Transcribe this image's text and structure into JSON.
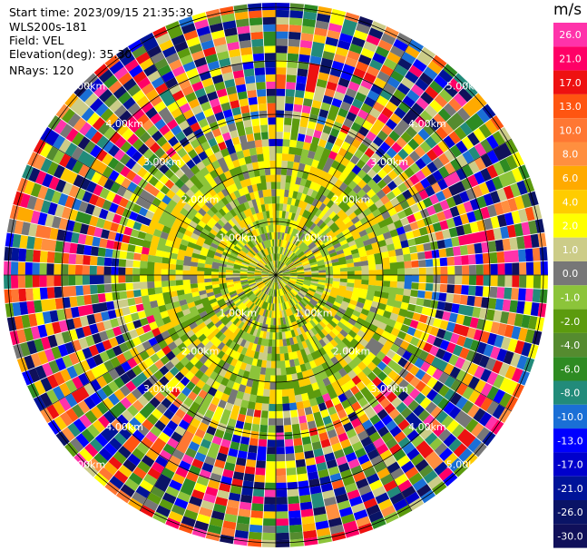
{
  "info": {
    "start_time": "Start time: 2023/09/15 21:35:39",
    "instrument": "WLS200s-181",
    "field": "Field: VEL",
    "elevation": "Elevation(deg): 35.30",
    "nrays": "NRays: 120"
  },
  "colorbar": {
    "unit": "m/s",
    "labels": [
      "26.0",
      "21.0",
      "17.0",
      "13.0",
      "10.0",
      "8.0",
      "6.0",
      "4.0",
      "2.0",
      "1.0",
      "0.0",
      "-1.0",
      "-2.0",
      "-4.0",
      "-6.0",
      "-8.0",
      "-10.0",
      "-13.0",
      "-17.0",
      "-21.0",
      "-26.0",
      "-30.0"
    ],
    "colors": [
      "#ff33aa",
      "#ff0066",
      "#ee1111",
      "#ff5511",
      "#ff7733",
      "#ff8f3f",
      "#ffaa00",
      "#ffcc00",
      "#ffff00",
      "#cccc88",
      "#777777",
      "#8cc43a",
      "#5c9b0e",
      "#558b2f",
      "#2e8b22",
      "#228b7a",
      "#1a6fd6",
      "#0000ff",
      "#0000cc",
      "#001399",
      "#0a1466",
      "#10105a"
    ]
  },
  "rings": {
    "labels": [
      "1.00km",
      "2.00km",
      "3.00km",
      "4.00km",
      "5.00km"
    ]
  }
}
